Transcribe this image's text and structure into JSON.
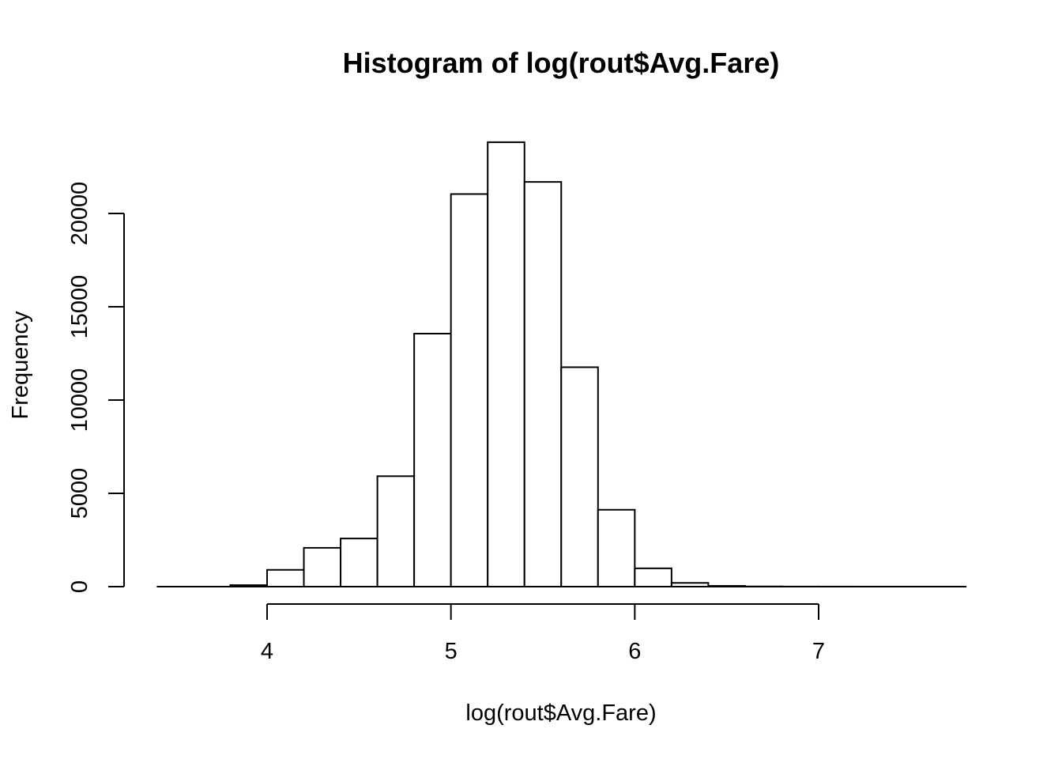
{
  "chart_data": {
    "type": "bar",
    "title": "Histogram of log(rout$Avg.Fare)",
    "xlabel": "log(rout$Avg.Fare)",
    "ylabel": "Frequency",
    "xlim": [
      3.4,
      7.8
    ],
    "ylim": [
      0,
      25000
    ],
    "x_ticks": [
      4,
      5,
      6,
      7
    ],
    "y_ticks": [
      0,
      5000,
      10000,
      15000,
      20000
    ],
    "bin_width": 0.2,
    "bins": [
      {
        "start": 3.4,
        "end": 3.6,
        "count": 0
      },
      {
        "start": 3.6,
        "end": 3.8,
        "count": 0
      },
      {
        "start": 3.8,
        "end": 4.0,
        "count": 80
      },
      {
        "start": 4.0,
        "end": 4.2,
        "count": 900
      },
      {
        "start": 4.2,
        "end": 4.4,
        "count": 2080
      },
      {
        "start": 4.4,
        "end": 4.6,
        "count": 2580
      },
      {
        "start": 4.6,
        "end": 4.8,
        "count": 5920
      },
      {
        "start": 4.8,
        "end": 5.0,
        "count": 13560
      },
      {
        "start": 5.0,
        "end": 5.2,
        "count": 21040
      },
      {
        "start": 5.2,
        "end": 5.4,
        "count": 23820
      },
      {
        "start": 5.4,
        "end": 5.6,
        "count": 21690
      },
      {
        "start": 5.6,
        "end": 5.8,
        "count": 11760
      },
      {
        "start": 5.8,
        "end": 6.0,
        "count": 4120
      },
      {
        "start": 6.0,
        "end": 6.2,
        "count": 980
      },
      {
        "start": 6.2,
        "end": 6.4,
        "count": 200
      },
      {
        "start": 6.4,
        "end": 6.6,
        "count": 40
      },
      {
        "start": 6.6,
        "end": 6.8,
        "count": 10
      },
      {
        "start": 6.8,
        "end": 7.0,
        "count": 5
      },
      {
        "start": 7.0,
        "end": 7.2,
        "count": 3
      },
      {
        "start": 7.2,
        "end": 7.4,
        "count": 2
      },
      {
        "start": 7.4,
        "end": 7.6,
        "count": 1
      },
      {
        "start": 7.6,
        "end": 7.8,
        "count": 1
      }
    ],
    "grid": false,
    "legend": "none"
  }
}
